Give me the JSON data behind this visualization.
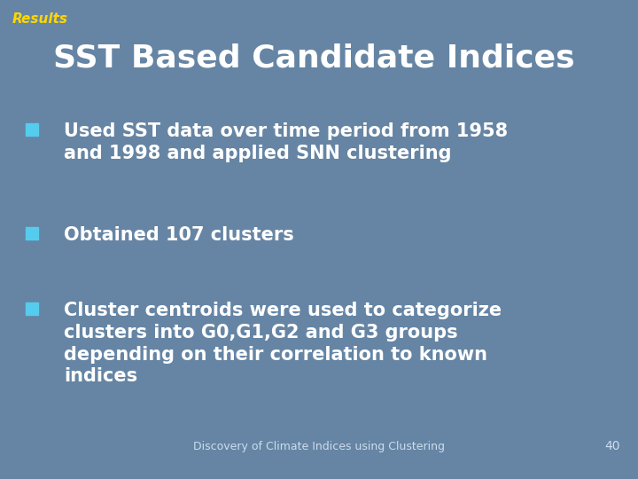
{
  "title": "SST Based Candidate Indices",
  "label": "Results",
  "label_color": "#FFD700",
  "title_color": "#FFFFFF",
  "background_color": "#6685A4",
  "bullet_color": "#55CCEE",
  "bullet_points": [
    "Used SST data over time period from 1958\nand 1998 and applied SNN clustering",
    "Obtained 107 clusters",
    "Cluster centroids were used to categorize\nclusters into G0,G1,G2 and G3 groups\ndepending on their correlation to known\nindices"
  ],
  "footer_text": "Discovery of Climate Indices using Clustering",
  "footer_color": "#CCDDEE",
  "page_number": "40",
  "text_color": "#FFFFFF",
  "title_fontsize": 26,
  "label_fontsize": 11,
  "bullet_fontsize": 15,
  "footer_fontsize": 9
}
